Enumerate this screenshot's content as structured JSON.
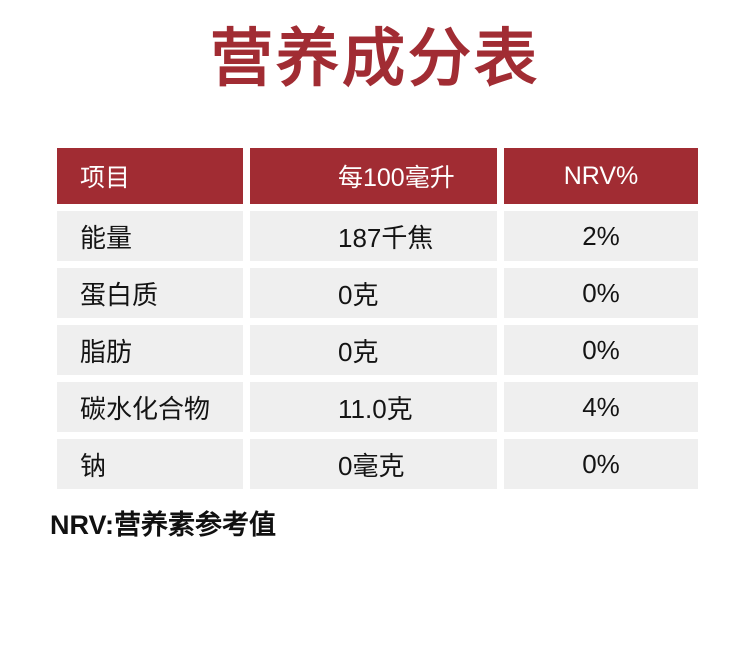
{
  "page": {
    "title": "营养成分表",
    "footnote": "NRV:营养素参考值"
  },
  "colors": {
    "accent_red": "#A12C33",
    "row_bg": "#EFEFEF",
    "header_text": "#FFFFFF",
    "body_text": "#141414"
  },
  "table": {
    "headers": [
      "项目",
      "每100毫升",
      "NRV%"
    ],
    "rows": [
      {
        "item": "能量",
        "per100ml": "187千焦",
        "nrv": "2%"
      },
      {
        "item": "蛋白质",
        "per100ml": "0克",
        "nrv": "0%"
      },
      {
        "item": "脂肪",
        "per100ml": "0克",
        "nrv": "0%"
      },
      {
        "item": "碳水化合物",
        "per100ml": "11.0克",
        "nrv": "4%"
      },
      {
        "item": "钠",
        "per100ml": "0毫克",
        "nrv": "0%"
      }
    ]
  }
}
